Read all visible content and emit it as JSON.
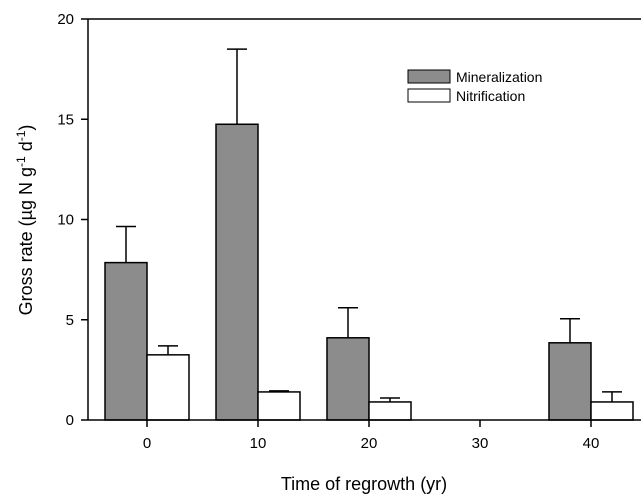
{
  "chart_data": {
    "type": "bar",
    "title": "",
    "xlabel": "Time of regrowth (yr)",
    "ylabel": {
      "base": "Gross rate (µg N g",
      "sup1": "-1",
      "mid": " d",
      "sup2": "-1",
      "end": ")"
    },
    "categories": [
      "0",
      "10",
      "20",
      "30",
      "40"
    ],
    "yticks": [
      "0",
      "5",
      "10",
      "15",
      "20"
    ],
    "ylim": [
      0,
      20
    ],
    "grid": false,
    "legend_position": "top-right",
    "series": [
      {
        "name": "Mineralization",
        "color": "#8c8c8c",
        "values": [
          7.85,
          14.75,
          4.1,
          null,
          3.85
        ],
        "errors": [
          1.8,
          3.75,
          1.5,
          null,
          1.2
        ]
      },
      {
        "name": "Nitrification",
        "color": "#ffffff",
        "values": [
          3.25,
          1.4,
          0.9,
          null,
          0.9
        ],
        "errors": [
          0.45,
          0.05,
          0.2,
          null,
          0.5
        ]
      }
    ]
  }
}
